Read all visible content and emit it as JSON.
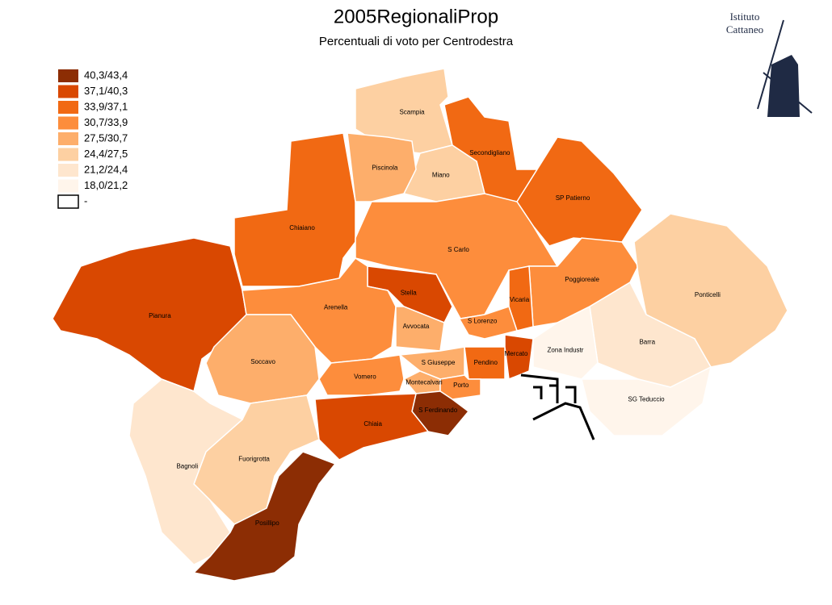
{
  "header": {
    "title": "2005RegionaliProp",
    "subtitle": "Percentuali di voto per Centrodestra"
  },
  "logo": {
    "lines": [
      "Istituto",
      "Cattaneo"
    ]
  },
  "legend": [
    {
      "label": "40,3/43,4",
      "color": "#8c2d04"
    },
    {
      "label": "37,1/40,3",
      "color": "#d94801"
    },
    {
      "label": "33,9/37,1",
      "color": "#f16913"
    },
    {
      "label": "30,7/33,9",
      "color": "#fd8d3c"
    },
    {
      "label": "27,5/30,7",
      "color": "#fdae6b"
    },
    {
      "label": "24,4/27,5",
      "color": "#fdd0a2"
    },
    {
      "label": "21,2/24,4",
      "color": "#fee6ce"
    },
    {
      "label": "18,0/21,2",
      "color": "#fff5eb"
    },
    {
      "label": "-",
      "color": "#ffffff"
    }
  ],
  "regions": [
    {
      "name": "Pianura",
      "color": "#d94801"
    },
    {
      "name": "Chiaiano",
      "color": "#f16913"
    },
    {
      "name": "Scampia",
      "color": "#fdd0a2"
    },
    {
      "name": "Secondigliano",
      "color": "#f16913"
    },
    {
      "name": "Miano",
      "color": "#fdd0a2"
    },
    {
      "name": "Piscinola",
      "color": "#fdae6b"
    },
    {
      "name": "SP Patierno",
      "color": "#f16913"
    },
    {
      "name": "S Carlo",
      "color": "#fd8d3c"
    },
    {
      "name": "Poggioreale",
      "color": "#fd8d3c"
    },
    {
      "name": "Vicaria",
      "color": "#f16913"
    },
    {
      "name": "Stella",
      "color": "#d94801"
    },
    {
      "name": "S Lorenzo",
      "color": "#fd8d3c"
    },
    {
      "name": "Arenella",
      "color": "#fd8d3c"
    },
    {
      "name": "Avvocata",
      "color": "#fdae6b"
    },
    {
      "name": "Soccavo",
      "color": "#fdae6b"
    },
    {
      "name": "Vomero",
      "color": "#fd8d3c"
    },
    {
      "name": "S Giuseppe",
      "color": "#fdae6b"
    },
    {
      "name": "Montecalvari",
      "color": "#fdae6b"
    },
    {
      "name": "Pendino",
      "color": "#f16913"
    },
    {
      "name": "Mercato",
      "color": "#d94801"
    },
    {
      "name": "Porto",
      "color": "#fd8d3c"
    },
    {
      "name": "S Ferdinando",
      "color": "#8c2d04"
    },
    {
      "name": "Chiaia",
      "color": "#d94801"
    },
    {
      "name": "Fuorigrotta",
      "color": "#fdd0a2"
    },
    {
      "name": "Bagnoli",
      "color": "#fee6ce"
    },
    {
      "name": "Posillipo",
      "color": "#8c2d04"
    },
    {
      "name": "Ponticelli",
      "color": "#fdd0a2"
    },
    {
      "name": "Barra",
      "color": "#fee6ce"
    },
    {
      "name": "SG Teduccio",
      "color": "#fff5eb"
    },
    {
      "name": "Zona Industr",
      "color": "#fff5eb"
    }
  ]
}
